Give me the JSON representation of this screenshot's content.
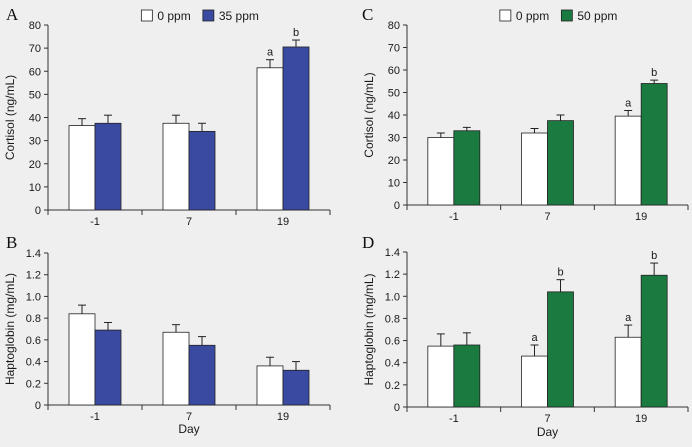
{
  "colors": {
    "background": "#f0eff0",
    "control_fill": "#ffffff",
    "blue_fill": "#3a4aa0",
    "green_fill": "#1a7a40",
    "axis": "#333333"
  },
  "chart_data": [
    {
      "type": "bar",
      "panel": "A",
      "categories": [
        "-1",
        "7",
        "19"
      ],
      "xlabel": "",
      "ylabel": "Cortisol (ng/mL)",
      "ylim": [
        0,
        80
      ],
      "yticks": [
        "0",
        "10",
        "20",
        "30",
        "40",
        "50",
        "60",
        "70",
        "80"
      ],
      "legend_position": "top",
      "series": [
        {
          "name": "0 ppm",
          "color": "control_fill",
          "values": [
            36.5,
            37.5,
            61.5
          ],
          "errors": [
            3,
            3.5,
            3.5
          ],
          "labels": [
            "",
            "",
            "a"
          ]
        },
        {
          "name": "35 ppm",
          "color": "blue_fill",
          "values": [
            37.5,
            34,
            70.5
          ],
          "errors": [
            3.5,
            3.5,
            3
          ],
          "labels": [
            "",
            "",
            "b"
          ]
        }
      ]
    },
    {
      "type": "bar",
      "panel": "B",
      "categories": [
        "-1",
        "7",
        "19"
      ],
      "xlabel": "Day",
      "ylabel": "Haptoglobin (mg/mL)",
      "ylim": [
        0,
        1.4
      ],
      "yticks": [
        "0",
        "0.2",
        "0.4",
        "0.6",
        "0.8",
        "1.0",
        "1.2",
        "1.4"
      ],
      "legend_position": "",
      "series": [
        {
          "name": "",
          "color": "control_fill",
          "values": [
            0.84,
            0.67,
            0.36
          ],
          "errors": [
            0.08,
            0.07,
            0.08
          ],
          "labels": [
            "",
            "",
            ""
          ]
        },
        {
          "name": "",
          "color": "blue_fill",
          "values": [
            0.69,
            0.55,
            0.32
          ],
          "errors": [
            0.07,
            0.08,
            0.08
          ],
          "labels": [
            "",
            "",
            ""
          ]
        }
      ]
    },
    {
      "type": "bar",
      "panel": "C",
      "categories": [
        "-1",
        "7",
        "19"
      ],
      "xlabel": "",
      "ylabel": "Cortisol (ng/mL)",
      "ylim": [
        0,
        80
      ],
      "yticks": [
        "0",
        "10",
        "20",
        "30",
        "40",
        "50",
        "60",
        "70",
        "80"
      ],
      "legend_position": "top",
      "series": [
        {
          "name": "0 ppm",
          "color": "control_fill",
          "values": [
            30,
            32,
            39.5
          ],
          "errors": [
            2,
            2,
            2.5
          ],
          "labels": [
            "",
            "",
            "a"
          ]
        },
        {
          "name": "50 ppm",
          "color": "green_fill",
          "values": [
            33,
            37.5,
            54
          ],
          "errors": [
            1.5,
            2.5,
            1.5
          ],
          "labels": [
            "",
            "",
            "b"
          ]
        }
      ]
    },
    {
      "type": "bar",
      "panel": "D",
      "categories": [
        "-1",
        "7",
        "19"
      ],
      "xlabel": "Day",
      "ylabel": "Haptoglobin (mg/mL)",
      "ylim": [
        0,
        1.4
      ],
      "yticks": [
        "0",
        "0.2",
        "0.4",
        "0.6",
        "0.8",
        "1.0",
        "1.2",
        "1.4"
      ],
      "legend_position": "",
      "series": [
        {
          "name": "",
          "color": "control_fill",
          "values": [
            0.55,
            0.46,
            0.63
          ],
          "errors": [
            0.11,
            0.1,
            0.11
          ],
          "labels": [
            "",
            "a",
            "a"
          ]
        },
        {
          "name": "",
          "color": "green_fill",
          "values": [
            0.56,
            1.04,
            1.19
          ],
          "errors": [
            0.11,
            0.11,
            0.11
          ],
          "labels": [
            "",
            "b",
            "b"
          ]
        }
      ]
    }
  ]
}
